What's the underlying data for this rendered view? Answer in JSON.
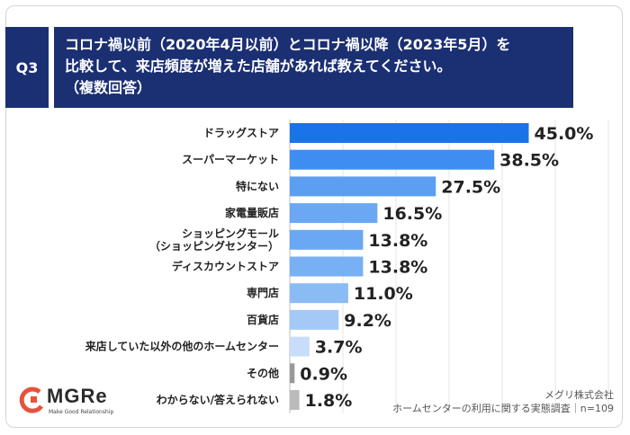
{
  "question": {
    "badge": "Q3",
    "lines": [
      "コロナ禍以前（2020年4月以前）とコロナ禍以降（2023年5月）を",
      "比較して、来店頻度が増えた店舗があれば教えてください。",
      "（複数回答）"
    ]
  },
  "chart_data": {
    "type": "bar",
    "orientation": "horizontal",
    "categories": [
      [
        "ドラッグストア"
      ],
      [
        "スーパーマーケット"
      ],
      [
        "特にない"
      ],
      [
        "家電量販店"
      ],
      [
        "ショッピングモール",
        "（ショッピングセンター）"
      ],
      [
        "ディスカウントストア"
      ],
      [
        "専門店"
      ],
      [
        "百貨店"
      ],
      [
        "来店していた以外の他のホームセンター"
      ],
      [
        "その他"
      ],
      [
        "わからない/答えられない"
      ]
    ],
    "values": [
      45.0,
      38.5,
      27.5,
      16.5,
      13.8,
      13.8,
      11.0,
      9.2,
      3.7,
      0.9,
      1.8
    ],
    "value_labels": [
      "45.0%",
      "38.5%",
      "27.5%",
      "16.5%",
      "13.8%",
      "13.8%",
      "11.0%",
      "9.2%",
      "3.7%",
      "0.9%",
      "1.8%"
    ],
    "colors": [
      "#1a73e8",
      "#3d8ef0",
      "#5b9ff2",
      "#6aa8f3",
      "#6aa8f3",
      "#78b0f4",
      "#8bbbf5",
      "#a3c9f7",
      "#c7ddfa",
      "#999999",
      "#bbbbbb"
    ],
    "xlim": [
      0,
      60
    ],
    "grid": true
  },
  "logo": {
    "name": "MGRe",
    "tagline": "Make Good Relationship",
    "color": "#e5533d"
  },
  "source": {
    "company": "メグリ株式会社",
    "survey": "ホームセンターの利用に関する実態調査｜n=109"
  }
}
